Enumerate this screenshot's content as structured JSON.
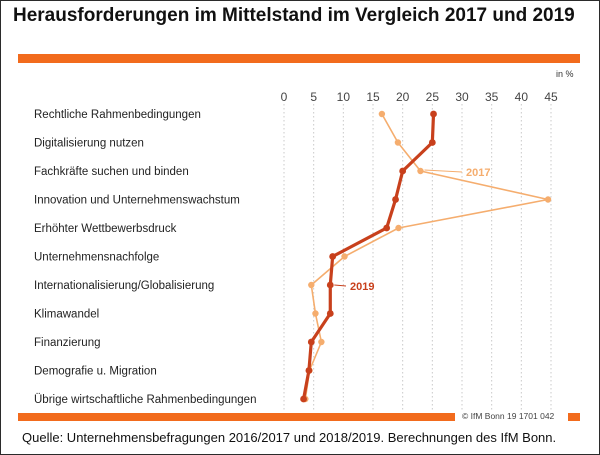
{
  "title": "Herausforderungen im Mittelstand im Vergleich 2017 und 2019",
  "unit": "in %",
  "credit": "© IfM Bonn 19 1701 042",
  "source": "Quelle: Unternehmensbefragungen 2016/2017 und 2018/2019. Berechnungen des IfM Bonn.",
  "colors": {
    "accent": "#f26b1d",
    "s2017": "#f5ad6e",
    "s2019": "#c8401c"
  },
  "chart_data": {
    "type": "line",
    "orientation": "horizontal",
    "categories": [
      "Rechtliche Rahmenbedingungen",
      "Digitalisierung nutzen",
      "Fachkräfte suchen und binden",
      "Innovation und Unternehmenswachstum",
      "Erhöhter Wettbewerbsdruck",
      "Unternehmensnachfolge",
      "Internationalisierung/Globalisierung",
      "Klimawandel",
      "Finanzierung",
      "Demografie u. Migration",
      "Übrige wirtschaftliche Rahmenbedingungen"
    ],
    "xlim": [
      0,
      45
    ],
    "ticks": [
      0,
      5,
      10,
      15,
      20,
      25,
      30,
      35,
      40,
      45
    ],
    "tick_labels": [
      "0",
      "5",
      "10",
      "15",
      "20",
      "25",
      "30",
      "35",
      "40",
      "45"
    ],
    "series": [
      {
        "name": "2017",
        "values": [
          16.5,
          19.2,
          23.0,
          44.5,
          19.3,
          10.2,
          4.6,
          5.3,
          6.3,
          4.3,
          3.6
        ]
      },
      {
        "name": "2019",
        "values": [
          25.2,
          25.0,
          20.0,
          18.8,
          17.3,
          8.2,
          7.8,
          7.8,
          4.6,
          4.2,
          3.3
        ]
      }
    ],
    "grid": "vertical dotted",
    "legend": "inline labels"
  }
}
